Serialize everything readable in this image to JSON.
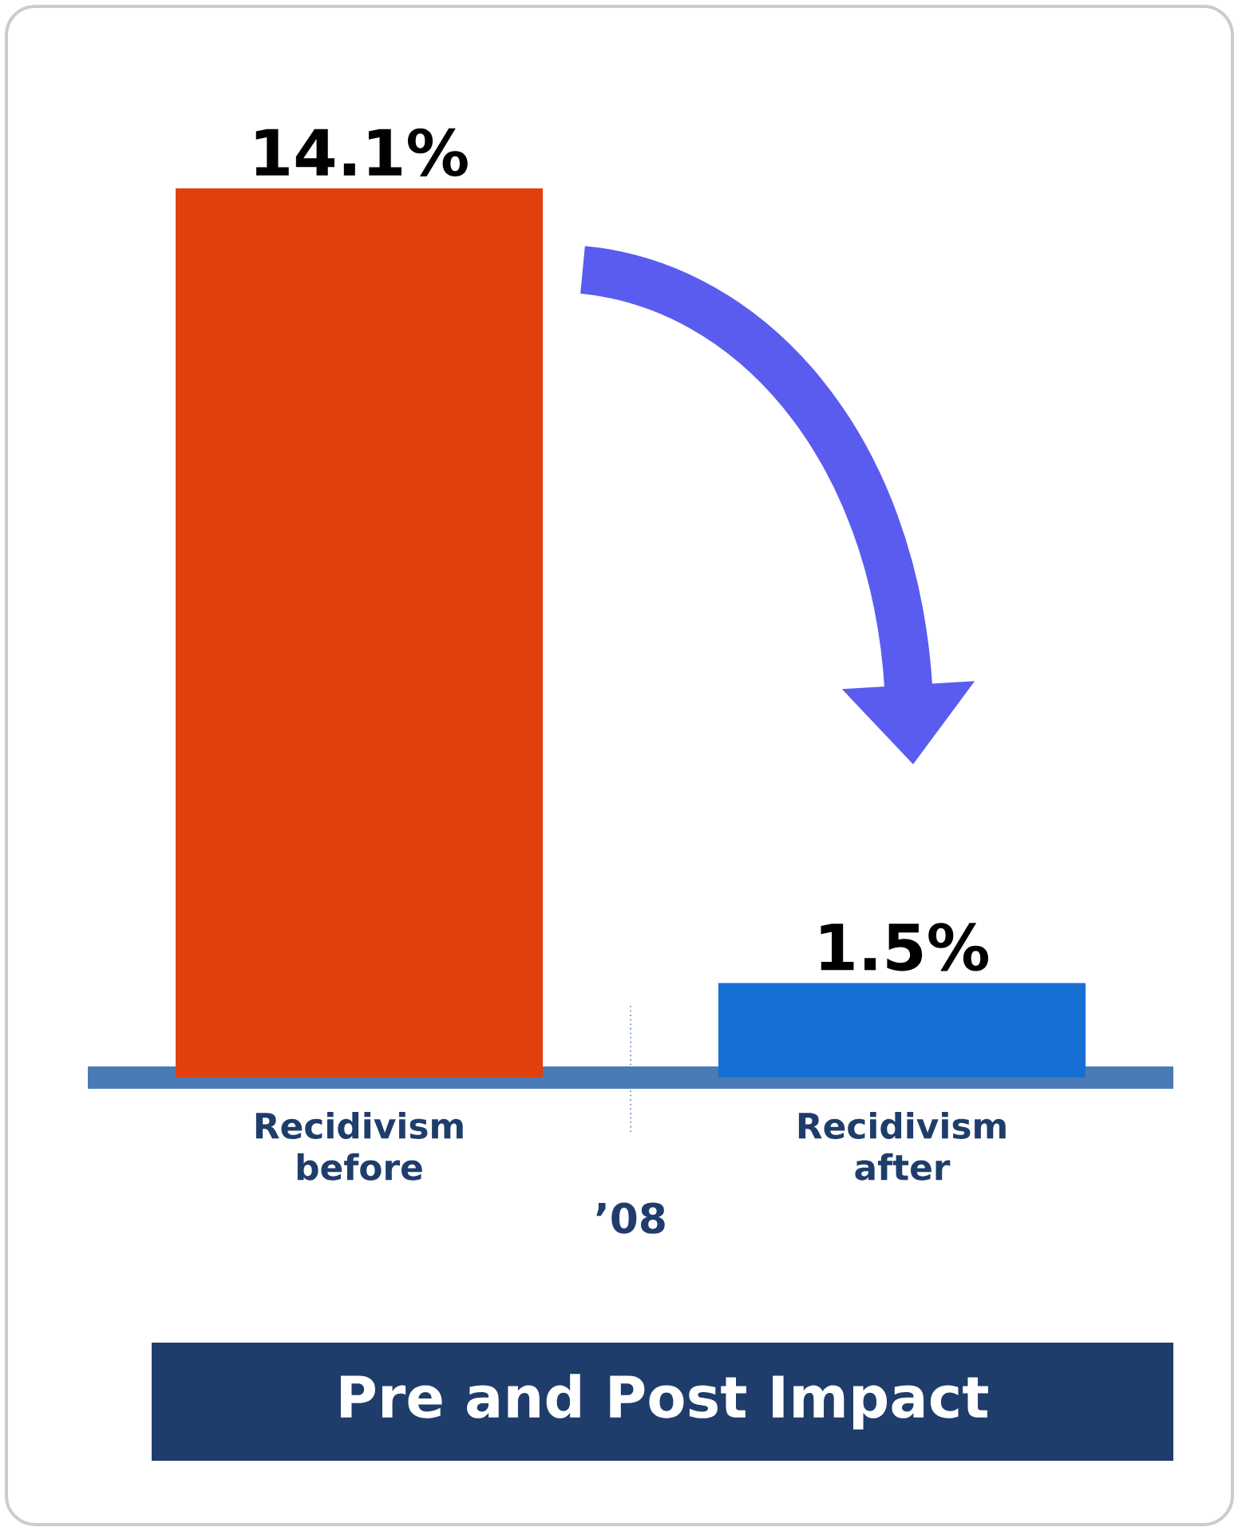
{
  "chart_data": {
    "type": "bar",
    "title": "Pre and Post Impact",
    "categories": [
      "Recidivism before",
      "Recidivism after"
    ],
    "values": [
      14.1,
      1.5
    ],
    "value_labels": [
      "14.1%",
      "1.5%"
    ],
    "colors": [
      "#e2400c",
      "#1670d4"
    ],
    "annotations": [
      "’08"
    ]
  }
}
